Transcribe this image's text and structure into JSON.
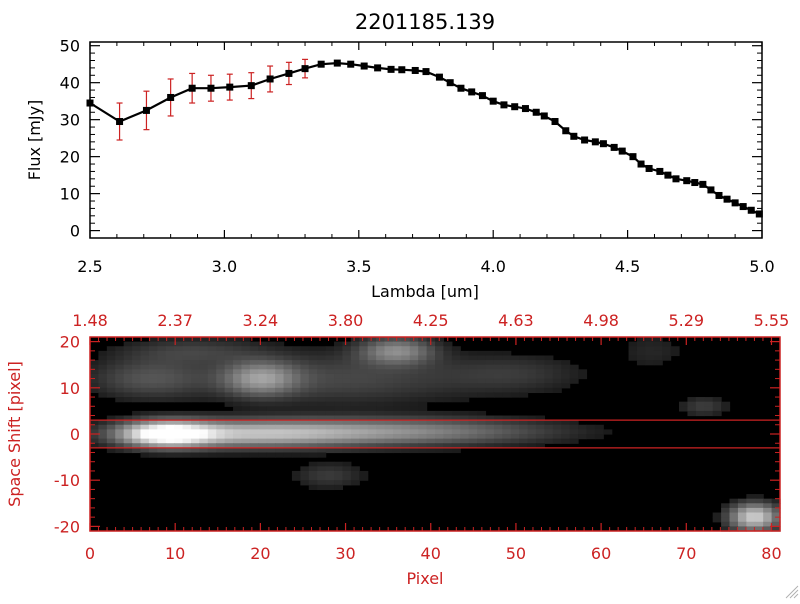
{
  "colors": {
    "black": "#000000",
    "red": "#cc2222",
    "white": "#ffffff"
  },
  "chart_data": [
    {
      "type": "line",
      "title": "2201185.139",
      "xlabel": "Lambda [um]",
      "ylabel": "Flux [mJy]",
      "xlim": [
        2.5,
        5.0
      ],
      "ylim": [
        -2,
        51
      ],
      "xticks": [
        2.5,
        3.0,
        3.5,
        4.0,
        4.5,
        5.0
      ],
      "xtick_labels": [
        "2.5",
        "3.0",
        "3.5",
        "4.0",
        "4.5",
        "5.0"
      ],
      "yticks": [
        0,
        10,
        20,
        30,
        40,
        50
      ],
      "ytick_labels": [
        "0",
        "10",
        "20",
        "30",
        "40",
        "50"
      ],
      "series": [
        {
          "name": "flux",
          "x": [
            2.5,
            2.61,
            2.71,
            2.8,
            2.88,
            2.95,
            3.02,
            3.1,
            3.17,
            3.24,
            3.3,
            3.36,
            3.42,
            3.47,
            3.52,
            3.57,
            3.62,
            3.66,
            3.71,
            3.75,
            3.8,
            3.84,
            3.88,
            3.92,
            3.96,
            4.0,
            4.04,
            4.08,
            4.12,
            4.16,
            4.19,
            4.23,
            4.27,
            4.3,
            4.34,
            4.38,
            4.41,
            4.45,
            4.48,
            4.52,
            4.55,
            4.58,
            4.62,
            4.65,
            4.68,
            4.72,
            4.75,
            4.78,
            4.81,
            4.84,
            4.87,
            4.9,
            4.93,
            4.96,
            4.99
          ],
          "y": [
            34.5,
            29.5,
            32.5,
            36.0,
            38.5,
            38.5,
            38.8,
            39.2,
            41.0,
            42.5,
            43.8,
            45.0,
            45.3,
            45.0,
            44.5,
            44.0,
            43.6,
            43.5,
            43.3,
            43.0,
            41.5,
            40.0,
            38.5,
            37.5,
            36.5,
            35.0,
            34.0,
            33.5,
            33.0,
            32.0,
            31.0,
            29.5,
            27.0,
            25.5,
            24.5,
            24.0,
            23.5,
            22.5,
            21.5,
            20.0,
            18.0,
            16.8,
            16.0,
            15.0,
            14.0,
            13.5,
            13.0,
            12.5,
            11.0,
            9.5,
            8.5,
            7.5,
            6.5,
            5.5,
            4.5
          ],
          "yerr": [
            0,
            5.0,
            5.2,
            5.0,
            4.0,
            3.5,
            3.5,
            3.5,
            3.5,
            3.0,
            2.5,
            0,
            0,
            0,
            0,
            0,
            0,
            0,
            0,
            0,
            0,
            0,
            0,
            0,
            0,
            0,
            0,
            0,
            0,
            0,
            0,
            0,
            0,
            0,
            0,
            0,
            0,
            0,
            0,
            0,
            0,
            0,
            0,
            0,
            0,
            0,
            0,
            0,
            0,
            0,
            0,
            0,
            0,
            0,
            0
          ]
        }
      ]
    },
    {
      "type": "heatmap",
      "xlabel": "Pixel",
      "ylabel": "Space Shift [pixel]",
      "xlim": [
        0,
        81
      ],
      "ylim": [
        -21,
        21
      ],
      "xticks": [
        0,
        10,
        20,
        30,
        40,
        50,
        60,
        70,
        80
      ],
      "xtick_labels": [
        "0",
        "10",
        "20",
        "30",
        "40",
        "50",
        "60",
        "70",
        "80"
      ],
      "yticks": [
        -20,
        -10,
        0,
        10,
        20
      ],
      "ytick_labels": [
        "-20",
        "-10",
        "0",
        "10",
        "20"
      ],
      "top_xticks": [
        0,
        10,
        20,
        30,
        40,
        50,
        60,
        70,
        80
      ],
      "top_xtick_labels": [
        "1.48",
        "2.37",
        "3.24",
        "3.80",
        "4.25",
        "4.63",
        "4.98",
        "5.29",
        "5.55"
      ],
      "extraction_window": [
        -3,
        3
      ],
      "blobs": [
        {
          "x": 9,
          "y": 0,
          "sx": 3.5,
          "sy": 1.8,
          "amp": 1.0
        },
        {
          "x": 18,
          "y": 0,
          "sx": 9,
          "sy": 2.0,
          "amp": 0.55
        },
        {
          "x": 36,
          "y": 0.5,
          "sx": 12,
          "sy": 2.0,
          "amp": 0.42
        },
        {
          "x": 20,
          "y": 12,
          "sx": 3,
          "sy": 2.5,
          "amp": 0.45
        },
        {
          "x": 7,
          "y": 12,
          "sx": 5,
          "sy": 3,
          "amp": 0.22
        },
        {
          "x": 36,
          "y": 18,
          "sx": 3,
          "sy": 2,
          "amp": 0.42
        },
        {
          "x": 12,
          "y": 18,
          "sx": 6,
          "sy": 2,
          "amp": 0.15
        },
        {
          "x": 30,
          "y": 12,
          "sx": 10,
          "sy": 4,
          "amp": 0.18
        },
        {
          "x": 50,
          "y": 13,
          "sx": 6,
          "sy": 3,
          "amp": 0.12
        },
        {
          "x": 28,
          "y": -9,
          "sx": 3,
          "sy": 2,
          "amp": 0.14
        },
        {
          "x": 78,
          "y": -18,
          "sx": 2,
          "sy": 2,
          "amp": 0.75
        },
        {
          "x": 72,
          "y": 6,
          "sx": 2,
          "sy": 1.5,
          "amp": 0.15
        },
        {
          "x": 66,
          "y": 18,
          "sx": 3,
          "sy": 3,
          "amp": 0.08
        }
      ]
    }
  ]
}
